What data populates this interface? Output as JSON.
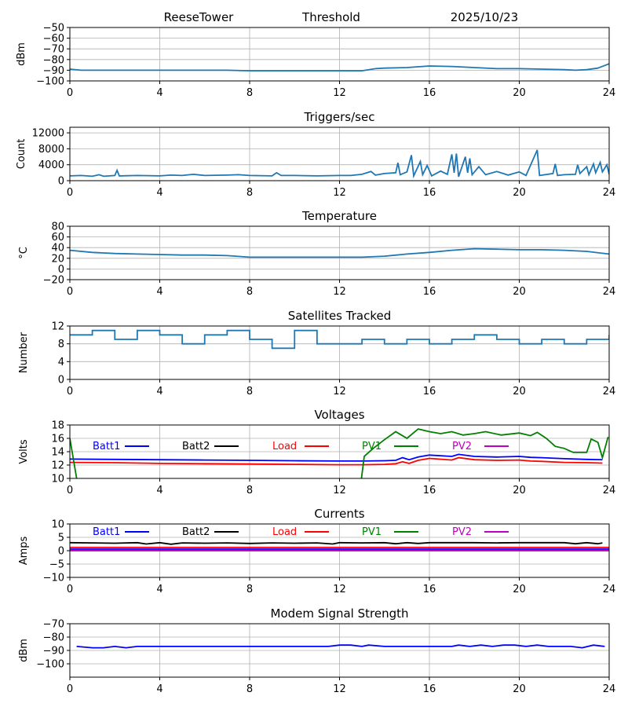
{
  "header": {
    "station": "ReeseTower",
    "plot": "Threshold",
    "date": "2025/10/23"
  },
  "chart_data": [
    {
      "id": "threshold",
      "type": "line",
      "title": "",
      "ylabel": "dBm",
      "ylim": [
        -100,
        -50
      ],
      "yticks": [
        -100,
        -90,
        -80,
        -70,
        -60,
        -50
      ],
      "xlim": [
        0,
        24
      ],
      "xticks": [
        0,
        4,
        8,
        12,
        16,
        20,
        24
      ],
      "grid": true,
      "series": [
        {
          "name": "Threshold",
          "color": "#1f77b4",
          "x": [
            0,
            0.5,
            1,
            2,
            3,
            4,
            5,
            6,
            7,
            8,
            9,
            10,
            11,
            12,
            13,
            13.6,
            14,
            15,
            16,
            17,
            18,
            19,
            20,
            21,
            22,
            22.5,
            23,
            23.5,
            24
          ],
          "y": [
            -89,
            -90,
            -90,
            -90,
            -90,
            -90,
            -90,
            -90,
            -90,
            -90.5,
            -90.5,
            -90.5,
            -90.5,
            -90.5,
            -90.5,
            -88.5,
            -88,
            -87.5,
            -86,
            -86.5,
            -87.5,
            -88.5,
            -88.5,
            -89,
            -89.5,
            -90,
            -89.5,
            -88,
            -84
          ]
        }
      ]
    },
    {
      "id": "triggers",
      "type": "line",
      "title": "Triggers/sec",
      "ylabel": "Count",
      "ylim": [
        0,
        13400
      ],
      "yticks": [
        0,
        4000,
        8000,
        12000
      ],
      "xlim": [
        0,
        24
      ],
      "xticks": [
        0,
        4,
        8,
        12,
        16,
        20,
        24
      ],
      "grid": true,
      "series": [
        {
          "name": "Triggers",
          "color": "#1f77b4",
          "x": [
            0,
            0.5,
            1,
            1.3,
            1.5,
            2,
            2.1,
            2.2,
            3,
            4,
            4.5,
            5,
            5.5,
            6,
            7,
            7.5,
            8,
            9,
            9.2,
            9.4,
            10,
            11,
            12,
            12.5,
            13,
            13.4,
            13.6,
            14,
            14.5,
            14.6,
            14.7,
            15,
            15.2,
            15.3,
            15.6,
            15.7,
            15.9,
            16.1,
            16.5,
            16.8,
            17,
            17.1,
            17.2,
            17.3,
            17.6,
            17.7,
            17.8,
            17.9,
            18.2,
            18.5,
            19,
            19.5,
            20,
            20.3,
            20.8,
            20.9,
            21.5,
            21.6,
            21.7,
            22,
            22.5,
            22.6,
            22.7,
            23,
            23.1,
            23.3,
            23.4,
            23.6,
            23.7,
            23.9,
            24
          ],
          "y": [
            1200,
            1300,
            1100,
            1500,
            1100,
            1300,
            2600,
            1200,
            1300,
            1200,
            1400,
            1300,
            1600,
            1300,
            1400,
            1500,
            1300,
            1200,
            2000,
            1300,
            1300,
            1200,
            1300,
            1300,
            1600,
            2300,
            1400,
            1800,
            2000,
            4500,
            1500,
            2200,
            6400,
            1200,
            4800,
            1500,
            3800,
            1200,
            2400,
            1600,
            6600,
            2000,
            6800,
            1000,
            6000,
            2000,
            5600,
            1500,
            3500,
            1500,
            2300,
            1400,
            2200,
            1300,
            7700,
            1300,
            1800,
            4200,
            1300,
            1500,
            1600,
            4000,
            1800,
            3500,
            1500,
            4200,
            2000,
            4600,
            2200,
            4000,
            1600
          ]
        }
      ]
    },
    {
      "id": "temperature",
      "type": "line",
      "title": "Temperature",
      "ylabel": "°C",
      "ylim": [
        -20,
        80
      ],
      "yticks": [
        -20,
        0,
        20,
        40,
        60,
        80
      ],
      "xlim": [
        0,
        24
      ],
      "xticks": [
        0,
        4,
        8,
        12,
        16,
        20,
        24
      ],
      "grid": true,
      "series": [
        {
          "name": "Temperature",
          "color": "#1f77b4",
          "x": [
            0,
            1,
            2,
            3,
            4,
            5,
            6,
            7,
            8,
            9,
            10,
            11,
            12,
            13,
            14,
            15,
            16,
            17,
            18,
            19,
            20,
            21,
            22,
            23,
            24
          ],
          "y": [
            35,
            31,
            29,
            28,
            27,
            26,
            26,
            25,
            22,
            22,
            22,
            22,
            22,
            22,
            24,
            28,
            31,
            35,
            38,
            37,
            36,
            36,
            35,
            33,
            28
          ]
        }
      ]
    },
    {
      "id": "satellites",
      "type": "step",
      "title": "Satellites Tracked",
      "ylabel": "Number",
      "ylim": [
        0,
        12
      ],
      "yticks": [
        0,
        4,
        8,
        12
      ],
      "xlim": [
        0,
        24
      ],
      "xticks": [
        0,
        4,
        8,
        12,
        16,
        20,
        24
      ],
      "grid": true,
      "series": [
        {
          "name": "Satellites",
          "color": "#1f77b4",
          "x": [
            0,
            1,
            2,
            3,
            4,
            5,
            6,
            7,
            8,
            9,
            10,
            11,
            12,
            13,
            14,
            15,
            16,
            17,
            18,
            19,
            20,
            21,
            22,
            23,
            24
          ],
          "y": [
            10,
            11,
            9,
            11,
            10,
            8,
            10,
            11,
            9,
            7,
            11,
            8,
            8,
            9,
            8,
            9,
            8,
            9,
            10,
            9,
            8,
            9,
            8,
            9,
            10
          ]
        }
      ]
    },
    {
      "id": "voltages",
      "type": "line",
      "title": "Voltages",
      "ylabel": "Volts",
      "ylim": [
        10,
        18
      ],
      "yticks": [
        10,
        12,
        14,
        16,
        18
      ],
      "xlim": [
        0,
        24
      ],
      "xticks": [
        0,
        4,
        8,
        12,
        16,
        20,
        24
      ],
      "grid": true,
      "legend": "top-inline",
      "series": [
        {
          "name": "Batt1",
          "color": "#0000ff",
          "x": [
            0,
            2,
            4,
            6,
            8,
            10,
            12,
            13,
            14,
            14.5,
            14.8,
            15.1,
            15.5,
            16,
            17,
            17.3,
            18,
            19,
            20,
            20.5,
            21,
            22,
            23,
            23.7
          ],
          "y": [
            12.9,
            12.85,
            12.8,
            12.75,
            12.7,
            12.65,
            12.6,
            12.6,
            12.65,
            12.7,
            13.1,
            12.8,
            13.2,
            13.5,
            13.3,
            13.6,
            13.3,
            13.2,
            13.3,
            13.15,
            13.1,
            12.95,
            12.85,
            12.8
          ]
        },
        {
          "name": "Batt2",
          "color": "#000000",
          "x": [],
          "y": []
        },
        {
          "name": "Load",
          "color": "#ff0000",
          "x": [
            0,
            2,
            4,
            6,
            8,
            10,
            12,
            13,
            14,
            14.5,
            14.8,
            15.1,
            15.5,
            16,
            17,
            17.3,
            18,
            19,
            20,
            20.5,
            21,
            22,
            23,
            23.7
          ],
          "y": [
            12.4,
            12.35,
            12.25,
            12.2,
            12.15,
            12.1,
            12.05,
            12.05,
            12.1,
            12.2,
            12.5,
            12.25,
            12.7,
            13.0,
            12.75,
            13.1,
            12.8,
            12.7,
            12.75,
            12.6,
            12.55,
            12.4,
            12.35,
            12.3
          ]
        },
        {
          "name": "PV1",
          "color": "#008000",
          "x": [
            0,
            0.4,
            12.9,
            13.1,
            13.5,
            14,
            14.5,
            15,
            15.5,
            16,
            16.5,
            17,
            17.5,
            18,
            18.5,
            19.2,
            20,
            20.5,
            20.8,
            21.2,
            21.6,
            22,
            22.4,
            23,
            23.2,
            23.5,
            23.7,
            23.95
          ],
          "y": [
            16,
            8,
            8,
            13.3,
            14.5,
            15.8,
            17,
            16,
            17.4,
            17,
            16.7,
            17,
            16.5,
            16.7,
            17,
            16.5,
            16.8,
            16.4,
            16.9,
            16,
            14.8,
            14.5,
            13.9,
            13.9,
            15.9,
            15.4,
            13.1,
            16.2
          ]
        },
        {
          "name": "PV2",
          "color": "#bf00bf",
          "x": [],
          "y": []
        }
      ]
    },
    {
      "id": "currents",
      "type": "line",
      "title": "Currents",
      "ylabel": "Amps",
      "ylim": [
        -10,
        10
      ],
      "yticks": [
        -10,
        -5,
        0,
        5,
        10
      ],
      "xlim": [
        0,
        24
      ],
      "xticks": [
        0,
        4,
        8,
        12,
        16,
        20,
        24
      ],
      "grid": true,
      "legend": "top-inline",
      "series": [
        {
          "name": "Batt1",
          "color": "#0000ff",
          "x": [
            0,
            24
          ],
          "y": [
            0.6,
            0.6
          ]
        },
        {
          "name": "Batt2",
          "color": "#000000",
          "x": [
            0,
            1,
            2,
            3,
            3.4,
            4,
            4.5,
            5,
            6,
            7,
            8,
            9,
            10,
            11,
            11.7,
            12,
            13,
            14,
            14.5,
            15,
            15.5,
            16,
            17,
            18,
            19,
            20,
            21,
            22,
            22.5,
            23,
            23.5,
            23.7
          ],
          "y": [
            3,
            2.9,
            2.8,
            3,
            2.5,
            3,
            2.4,
            2.9,
            2.8,
            2.9,
            2.7,
            2.9,
            2.8,
            2.9,
            2.5,
            3,
            2.9,
            3,
            2.6,
            3,
            2.7,
            3,
            3,
            3,
            2.9,
            3,
            3,
            3,
            2.6,
            3,
            2.6,
            2.9
          ]
        },
        {
          "name": "Load",
          "color": "#ff0000",
          "x": [
            0,
            24
          ],
          "y": [
            1.2,
            1.2
          ]
        },
        {
          "name": "PV1",
          "color": "#008000",
          "x": [
            0,
            24
          ],
          "y": [
            0,
            0
          ]
        },
        {
          "name": "PV2",
          "color": "#bf00bf",
          "x": [
            0,
            24
          ],
          "y": [
            0.1,
            0.1
          ]
        }
      ]
    },
    {
      "id": "modem",
      "type": "line",
      "title": "Modem Signal Strength",
      "ylabel": "dBm",
      "ylim": [
        -110,
        -70
      ],
      "yticks": [
        -100,
        -90,
        -80,
        -70
      ],
      "xlim": [
        0,
        24
      ],
      "xticks": [
        0,
        4,
        8,
        12,
        16,
        20,
        24
      ],
      "grid": true,
      "series": [
        {
          "name": "Modem",
          "color": "#0000ff",
          "x": [
            0.3,
            1,
            1.5,
            2,
            2.5,
            3,
            11.5,
            12,
            12.5,
            13,
            13.3,
            14,
            17,
            17.3,
            17.8,
            18.3,
            18.8,
            19.3,
            19.8,
            20.3,
            20.8,
            21.3,
            22.3,
            22.8,
            23.3,
            23.8
          ],
          "y": [
            -87,
            -88,
            -88,
            -87,
            -88,
            -87,
            -87,
            -86,
            -86,
            -87,
            -86,
            -87,
            -87,
            -86,
            -87,
            -86,
            -87,
            -86,
            -86,
            -87,
            -86,
            -87,
            -87,
            -88,
            -86,
            -87
          ]
        }
      ]
    }
  ]
}
